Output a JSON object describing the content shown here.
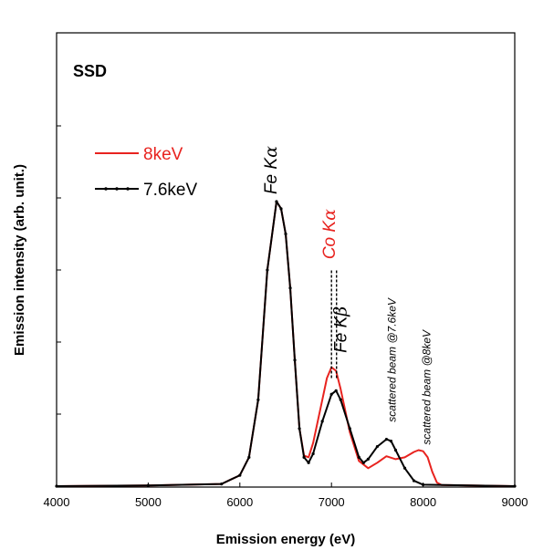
{
  "chart_data": {
    "type": "line",
    "panel_label": "SSD",
    "xlabel": "Emission energy (eV)",
    "ylabel": "Emission intensity (arb. unit.)",
    "xlim": [
      4000,
      9000
    ],
    "ylim": [
      0,
      1.0
    ],
    "x_ticks": [
      "4000",
      "5000",
      "6000",
      "7000",
      "8000",
      "9000"
    ],
    "y_tick_values": [
      0,
      0.2,
      0.4,
      0.6,
      0.8,
      1.0
    ],
    "grid": false,
    "legend_position": "top-left",
    "series": [
      {
        "name": "8keV",
        "color": "#e8231f",
        "points": [
          [
            4000,
            0.0
          ],
          [
            5000,
            0.002
          ],
          [
            5800,
            0.006
          ],
          [
            6000,
            0.03
          ],
          [
            6100,
            0.08
          ],
          [
            6200,
            0.24
          ],
          [
            6300,
            0.6
          ],
          [
            6400,
            0.79
          ],
          [
            6450,
            0.77
          ],
          [
            6500,
            0.7
          ],
          [
            6550,
            0.55
          ],
          [
            6600,
            0.35
          ],
          [
            6650,
            0.16
          ],
          [
            6700,
            0.085
          ],
          [
            6750,
            0.08
          ],
          [
            6800,
            0.12
          ],
          [
            6900,
            0.24
          ],
          [
            6950,
            0.3
          ],
          [
            7000,
            0.33
          ],
          [
            7050,
            0.32
          ],
          [
            7100,
            0.27
          ],
          [
            7200,
            0.15
          ],
          [
            7300,
            0.07
          ],
          [
            7400,
            0.05
          ],
          [
            7500,
            0.065
          ],
          [
            7600,
            0.083
          ],
          [
            7700,
            0.075
          ],
          [
            7800,
            0.08
          ],
          [
            7900,
            0.095
          ],
          [
            7950,
            0.1
          ],
          [
            8000,
            0.097
          ],
          [
            8050,
            0.08
          ],
          [
            8100,
            0.04
          ],
          [
            8150,
            0.01
          ],
          [
            8200,
            0.003
          ],
          [
            9000,
            0.0
          ]
        ]
      },
      {
        "name": "7.6keV",
        "color": "#000000",
        "points": [
          [
            4000,
            0.0
          ],
          [
            5000,
            0.002
          ],
          [
            5800,
            0.006
          ],
          [
            6000,
            0.03
          ],
          [
            6100,
            0.08
          ],
          [
            6200,
            0.24
          ],
          [
            6300,
            0.6
          ],
          [
            6400,
            0.79
          ],
          [
            6450,
            0.77
          ],
          [
            6500,
            0.7
          ],
          [
            6550,
            0.55
          ],
          [
            6600,
            0.35
          ],
          [
            6650,
            0.16
          ],
          [
            6700,
            0.08
          ],
          [
            6750,
            0.065
          ],
          [
            6800,
            0.09
          ],
          [
            6900,
            0.18
          ],
          [
            7000,
            0.255
          ],
          [
            7050,
            0.265
          ],
          [
            7100,
            0.24
          ],
          [
            7200,
            0.16
          ],
          [
            7300,
            0.08
          ],
          [
            7350,
            0.065
          ],
          [
            7400,
            0.075
          ],
          [
            7500,
            0.11
          ],
          [
            7600,
            0.13
          ],
          [
            7650,
            0.125
          ],
          [
            7700,
            0.1
          ],
          [
            7800,
            0.05
          ],
          [
            7900,
            0.015
          ],
          [
            8000,
            0.004
          ],
          [
            9000,
            0.0
          ]
        ]
      }
    ],
    "annotations": [
      {
        "text": "Fe K",
        "greek": "α",
        "x": 6400,
        "y": 0.81,
        "rotate": -90,
        "color": "#000000",
        "size": "big"
      },
      {
        "text": "Co K",
        "greek": "α",
        "x": 7040,
        "y": 0.63,
        "rotate": -90,
        "color": "#e8231f",
        "size": "big"
      },
      {
        "text": "Fe K",
        "greek": "β",
        "x": 7160,
        "y": 0.37,
        "rotate": -90,
        "color": "#000000",
        "size": "big"
      },
      {
        "text": "scattered beam @7.6keV",
        "greek": "",
        "x": 7700,
        "y": 0.178,
        "rotate": -90,
        "color": "#000000",
        "size": "small"
      },
      {
        "text": "scattered beam @8keV",
        "greek": "",
        "x": 8080,
        "y": 0.115,
        "rotate": -90,
        "color": "#000000",
        "size": "small"
      }
    ],
    "markers": [
      {
        "type": "dashed-vline",
        "x": 7000,
        "y_from": 0.3,
        "y_to": 0.6,
        "color": "#000000"
      },
      {
        "type": "dashed-vline",
        "x": 7055,
        "y_from": 0.3,
        "y_to": 0.6,
        "color": "#000000"
      }
    ]
  }
}
